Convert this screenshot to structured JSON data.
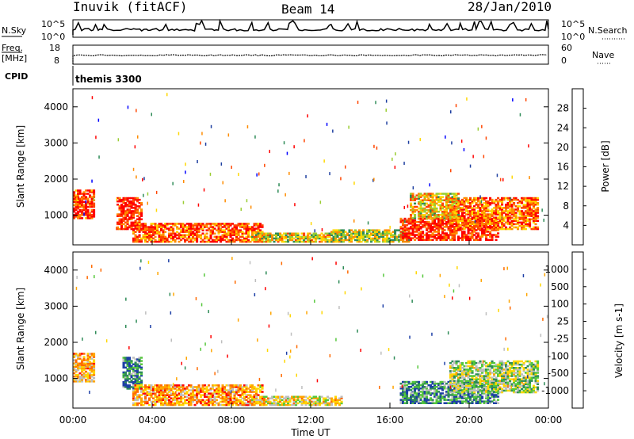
{
  "header": {
    "station": "Inuvik (fitACF)",
    "beam": "Beam 14",
    "date": "28/Jan/2010"
  },
  "top_panels": {
    "nsky_label": "N.Sky",
    "nsky_ticks": [
      "10^5",
      "10^0"
    ],
    "nsearch_label": "N.Search",
    "nsearch_ticks": [
      "10^5",
      "10^0"
    ],
    "freq_label": "Freq.",
    "freq_unit": "[MHz]",
    "freq_ticks": [
      "18",
      "8"
    ],
    "nave_label": "Nave",
    "nave_ticks": [
      "60",
      "0"
    ],
    "cpid_label": "CPID",
    "cpid_value": "themis 3300"
  },
  "chart_data": [
    {
      "type": "heatmap",
      "panel": "power",
      "ylabel": "Slant Range [km]",
      "y_ticks": [
        "4000",
        "3000",
        "2000",
        "1000"
      ],
      "ylim": [
        180,
        4500
      ],
      "x_ticks": [
        "00:00",
        "04:00",
        "08:00",
        "12:00",
        "16:00",
        "20:00",
        "00:00"
      ],
      "xlabel": "Time UT",
      "colorbar": {
        "label": "Power [dB]",
        "ticks": [
          "28",
          "24",
          "20",
          "16",
          "12",
          "8",
          "4"
        ],
        "colors": [
          "#ff0000",
          "#ff4500",
          "#ff8c00",
          "#ffd700",
          "#9acd32",
          "#2e8b57",
          "#1e3fa0",
          "#0000ff"
        ]
      },
      "regions": [
        {
          "t": [
            0.0,
            1.0
          ],
          "r": [
            900,
            1700
          ],
          "level": 0.85
        },
        {
          "t": [
            2.2,
            3.5
          ],
          "r": [
            600,
            1500
          ],
          "level": 0.9
        },
        {
          "t": [
            3.0,
            9.5
          ],
          "r": [
            250,
            750
          ],
          "level": 0.8
        },
        {
          "t": [
            9.0,
            13.0
          ],
          "r": [
            250,
            500
          ],
          "level": 0.55
        },
        {
          "t": [
            13.0,
            17.0
          ],
          "r": [
            250,
            600
          ],
          "level": 0.5
        },
        {
          "t": [
            16.5,
            21.5
          ],
          "r": [
            300,
            900
          ],
          "level": 0.9
        },
        {
          "t": [
            19.0,
            23.5
          ],
          "r": [
            600,
            1500
          ],
          "level": 0.75
        },
        {
          "t": [
            17.0,
            19.5
          ],
          "r": [
            900,
            1600
          ],
          "level": 0.6
        }
      ]
    },
    {
      "type": "heatmap",
      "panel": "velocity",
      "ylabel": "Slant Range [km]",
      "y_ticks": [
        "4000",
        "3000",
        "2000",
        "1000"
      ],
      "ylim": [
        180,
        4500
      ],
      "x_ticks": [
        "00:00",
        "04:00",
        "08:00",
        "12:00",
        "16:00",
        "20:00",
        "00:00"
      ],
      "xlabel": "Time UT",
      "colorbar": {
        "label": "Velocity [m s-1]",
        "ticks": [
          "1000",
          "500",
          "100",
          "25",
          "-25",
          "-100",
          "-500",
          "-1000"
        ],
        "colors": [
          "#1d3fa6",
          "#2e8b57",
          "#55c73b",
          "#bebebe",
          "#ffd700",
          "#ffa500",
          "#ff6a00",
          "#ff0000"
        ]
      },
      "regions": [
        {
          "t": [
            0.0,
            1.0
          ],
          "r": [
            900,
            1700
          ],
          "level": 0.35
        },
        {
          "t": [
            2.5,
            3.5
          ],
          "r": [
            700,
            1600
          ],
          "level": 0.8
        },
        {
          "t": [
            3.0,
            9.5
          ],
          "r": [
            250,
            800
          ],
          "level": 0.3
        },
        {
          "t": [
            9.0,
            13.5
          ],
          "r": [
            250,
            500
          ],
          "level": 0.45
        },
        {
          "t": [
            16.5,
            21.5
          ],
          "r": [
            300,
            900
          ],
          "level": 0.8
        },
        {
          "t": [
            19.0,
            23.5
          ],
          "r": [
            600,
            1500
          ],
          "level": 0.6
        }
      ]
    }
  ]
}
